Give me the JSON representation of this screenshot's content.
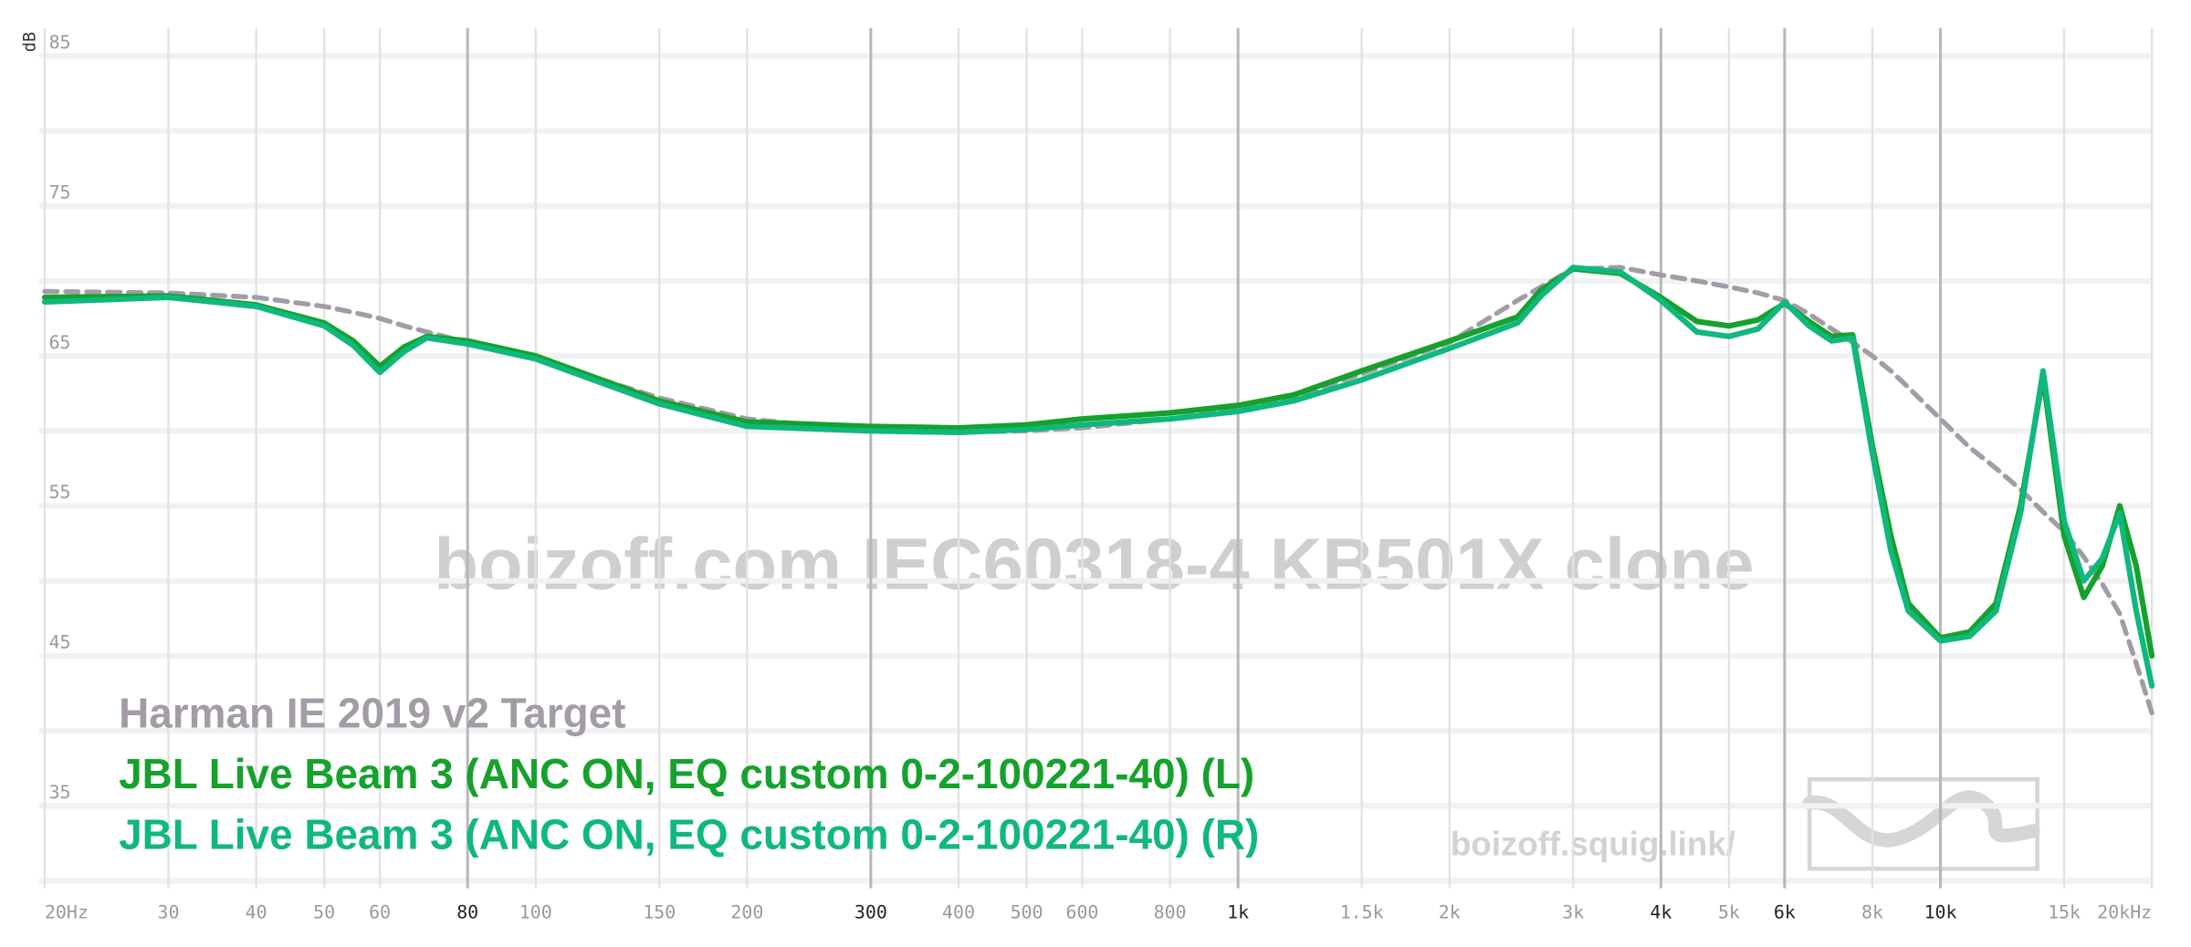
{
  "chart_data": {
    "type": "line",
    "watermark": "boizoff.com IEC60318-4 KB501X clone",
    "site_label": "boizoff.squig.link/",
    "y_label": "dB",
    "log_x": true,
    "xlim": [
      20,
      20000
    ],
    "ylim": [
      30,
      87
    ],
    "yticks": [
      35,
      45,
      55,
      65,
      75,
      85
    ],
    "y_minor_grid": [
      30,
      40,
      50,
      60,
      70,
      80
    ],
    "xticks": [
      {
        "value": 20,
        "label": "20Hz"
      },
      30,
      40,
      50,
      60,
      80,
      100,
      150,
      200,
      300,
      400,
      500,
      600,
      800,
      {
        "value": 1000,
        "label": "1k"
      },
      {
        "value": 1500,
        "label": "1.5k"
      },
      {
        "value": 2000,
        "label": "2k"
      },
      {
        "value": 3000,
        "label": "3k"
      },
      {
        "value": 4000,
        "label": "4k"
      },
      {
        "value": 5000,
        "label": "5k"
      },
      {
        "value": 6000,
        "label": "6k"
      },
      {
        "value": 8000,
        "label": "8k"
      },
      {
        "value": 10000,
        "label": "10k"
      },
      {
        "value": 15000,
        "label": "15k"
      },
      {
        "value": 20000,
        "label": "20kHz"
      }
    ],
    "xticks_major": [
      80,
      300,
      1000,
      4000,
      6000,
      10000
    ],
    "legend": "bottom-left",
    "x": [
      20,
      30,
      40,
      50,
      55,
      60,
      65,
      70,
      80,
      100,
      150,
      200,
      300,
      400,
      500,
      600,
      800,
      1000,
      1200,
      1500,
      2000,
      2500,
      2700,
      3000,
      3500,
      4000,
      4500,
      5000,
      5500,
      6000,
      6500,
      7000,
      7500,
      8000,
      8500,
      9000,
      10000,
      11000,
      12000,
      13000,
      14000,
      15000,
      16000,
      17000,
      18000,
      19000,
      20000
    ],
    "series": [
      {
        "name": "Harman IE 2019 v2 Target",
        "color": "#a39ca7",
        "dashed": true,
        "values": [
          69.3,
          69.2,
          68.9,
          68.3,
          67.9,
          67.5,
          67.0,
          66.6,
          65.9,
          64.8,
          62.2,
          60.8,
          60.0,
          59.9,
          60.0,
          60.2,
          60.8,
          61.5,
          62.3,
          63.8,
          65.9,
          68.7,
          69.6,
          70.8,
          70.9,
          70.4,
          70.0,
          69.6,
          69.2,
          68.7,
          67.8,
          66.8,
          65.9,
          65.0,
          64.0,
          62.9,
          60.8,
          58.9,
          57.5,
          56.1,
          54.6,
          53.3,
          51.6,
          49.8,
          47.8,
          44.5,
          41.2
        ]
      },
      {
        "name": "JBL Live Beam 3 (ANC ON, EQ custom 0-2-100221-40) (L)",
        "color": "#16a12c",
        "values": [
          68.9,
          69.0,
          68.4,
          67.2,
          66.0,
          64.3,
          65.6,
          66.3,
          66.0,
          65.0,
          62.0,
          60.6,
          60.3,
          60.2,
          60.4,
          60.8,
          61.2,
          61.7,
          62.4,
          64.0,
          66.0,
          67.6,
          69.4,
          70.8,
          70.5,
          68.9,
          67.3,
          67.0,
          67.4,
          68.5,
          67.3,
          66.3,
          66.4,
          59.0,
          53.0,
          48.5,
          46.2,
          46.6,
          48.5,
          55.0,
          63.6,
          53.0,
          48.9,
          51.0,
          55.0,
          51.0,
          45.0
        ]
      },
      {
        "name": "JBL Live Beam 3 (ANC ON, EQ custom 0-2-100221-40) (R)",
        "color": "#0fb87c",
        "values": [
          68.6,
          68.9,
          68.3,
          67.0,
          65.7,
          63.9,
          65.3,
          66.2,
          65.8,
          64.8,
          61.8,
          60.3,
          60.0,
          59.9,
          60.1,
          60.4,
          60.8,
          61.3,
          62.0,
          63.4,
          65.5,
          67.2,
          69.0,
          70.9,
          70.6,
          68.7,
          66.6,
          66.3,
          66.8,
          68.6,
          67.0,
          66.0,
          66.2,
          58.5,
          52.0,
          48.0,
          46.0,
          46.3,
          48.0,
          54.5,
          64.0,
          54.0,
          50.0,
          51.5,
          54.5,
          48.0,
          43.0
        ]
      }
    ]
  }
}
